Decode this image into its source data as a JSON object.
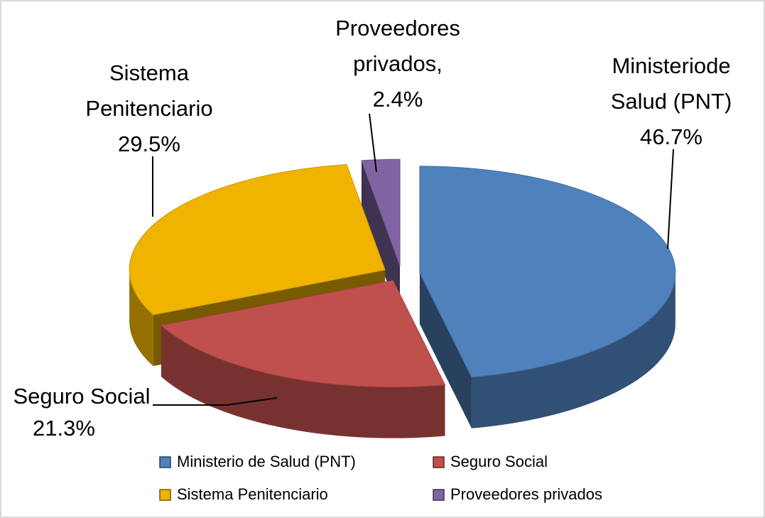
{
  "chart_data": {
    "type": "pie",
    "categories": [
      "Ministerio de Salud (PNT)",
      "Seguro Social",
      "Sistema Penitenciario",
      "Proveedores privados"
    ],
    "values": [
      46.7,
      21.3,
      29.5,
      2.4
    ],
    "value_labels": [
      "46.7%",
      "21.3%",
      "29.5%",
      "2.4%"
    ],
    "data_label_lines": [
      [
        "Ministeriode",
        "Salud (PNT)"
      ],
      [
        "Seguro Social"
      ],
      [
        "Sistema",
        "Penitenciario"
      ],
      [
        "Proveedores",
        "privados,"
      ]
    ],
    "colors": [
      "#4f81bd",
      "#c0504d",
      "#f0b400",
      "#8064a2"
    ],
    "legend": "bottom",
    "three_d": true
  }
}
